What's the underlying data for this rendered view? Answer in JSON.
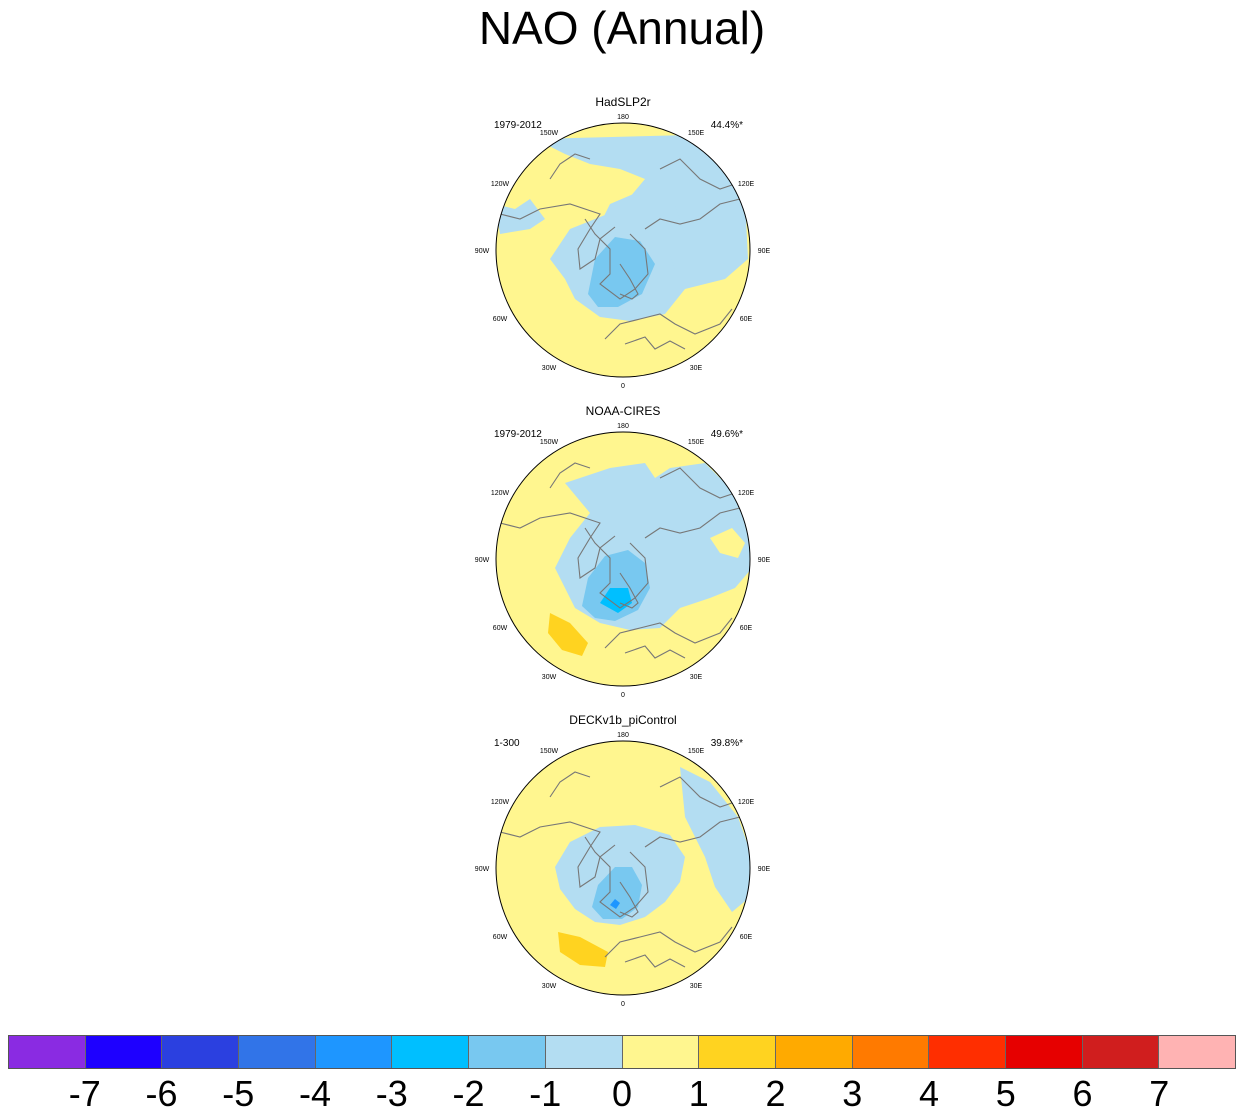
{
  "title": "NAO (Annual)",
  "panels": [
    {
      "name": "HadSLP2r",
      "period": "1979-2012",
      "variance": "44.4%*"
    },
    {
      "name": "NOAA-CIRES",
      "period": "1979-2012",
      "variance": "49.6%*"
    },
    {
      "name": "DECKv1b_piControl",
      "period": "1-300",
      "variance": "39.8%*"
    }
  ],
  "longitude_labels": [
    "180",
    "150E",
    "120E",
    "90E",
    "60E",
    "30E",
    "0",
    "30W",
    "60W",
    "90W",
    "120W",
    "150W"
  ],
  "colorbar": {
    "colors": [
      "#8a2be2",
      "#1e00ff",
      "#2b40e0",
      "#3174e8",
      "#1e96ff",
      "#00bfff",
      "#78c8f0",
      "#b3ddf2",
      "#fff68f",
      "#ffd320",
      "#ffaa00",
      "#ff7a00",
      "#ff2e00",
      "#e60000",
      "#d01e1e",
      "#ffb3b3"
    ],
    "labels": [
      "-7",
      "-6",
      "-5",
      "-4",
      "-3",
      "-2",
      "-1",
      "0",
      "1",
      "2",
      "3",
      "4",
      "5",
      "6",
      "7"
    ]
  }
}
